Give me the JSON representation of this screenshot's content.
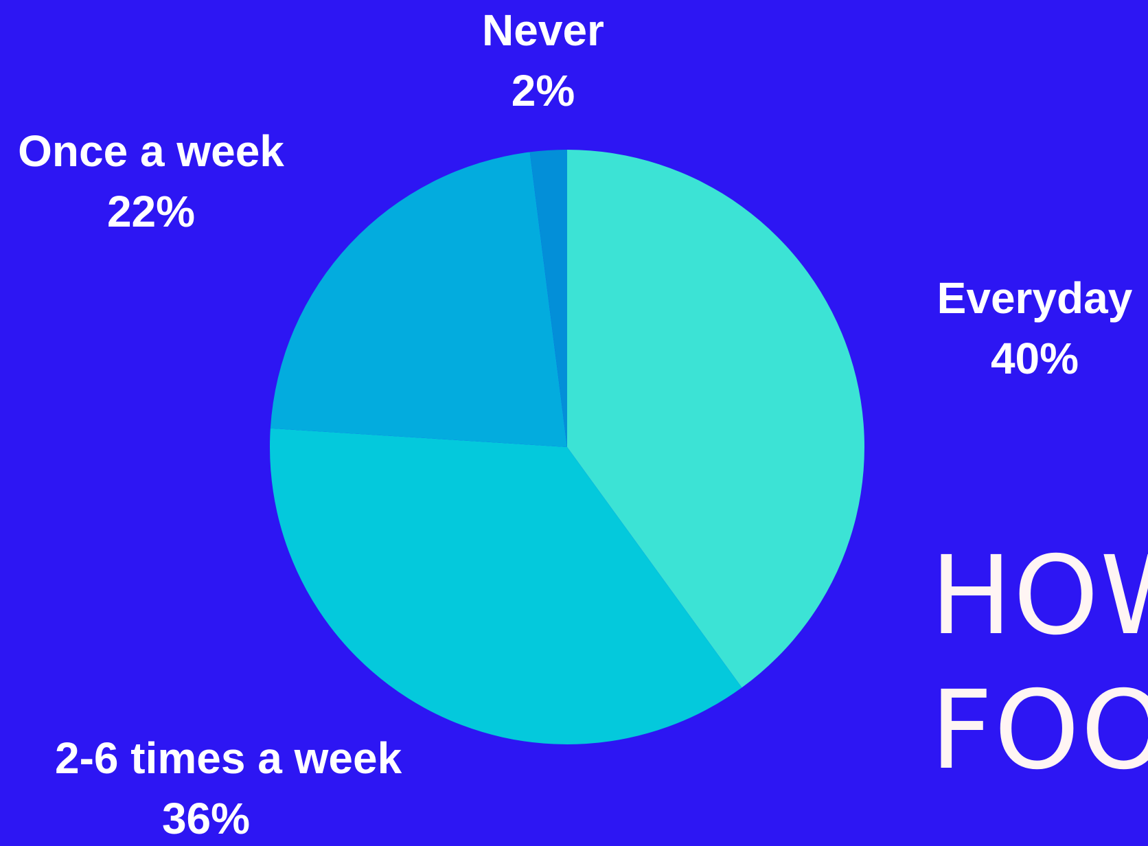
{
  "chart_data": {
    "type": "pie",
    "categories": [
      "Everyday",
      "2-6 times a week",
      "Once a week",
      "Never"
    ],
    "values": [
      40,
      36,
      22,
      2
    ],
    "value_labels": [
      "40%",
      "36%",
      "22%",
      "2%"
    ],
    "colors": [
      "#3ce3d5",
      "#04c9dc",
      "#03acde",
      "#038fd8"
    ],
    "start": "top",
    "direction": "clockwise"
  },
  "headline": {
    "line1": "HOW",
    "line2": "FOO"
  },
  "colors": {
    "background": "#2d16f3",
    "label_text": "#ffffff",
    "headline_text": "#fff5f3"
  }
}
